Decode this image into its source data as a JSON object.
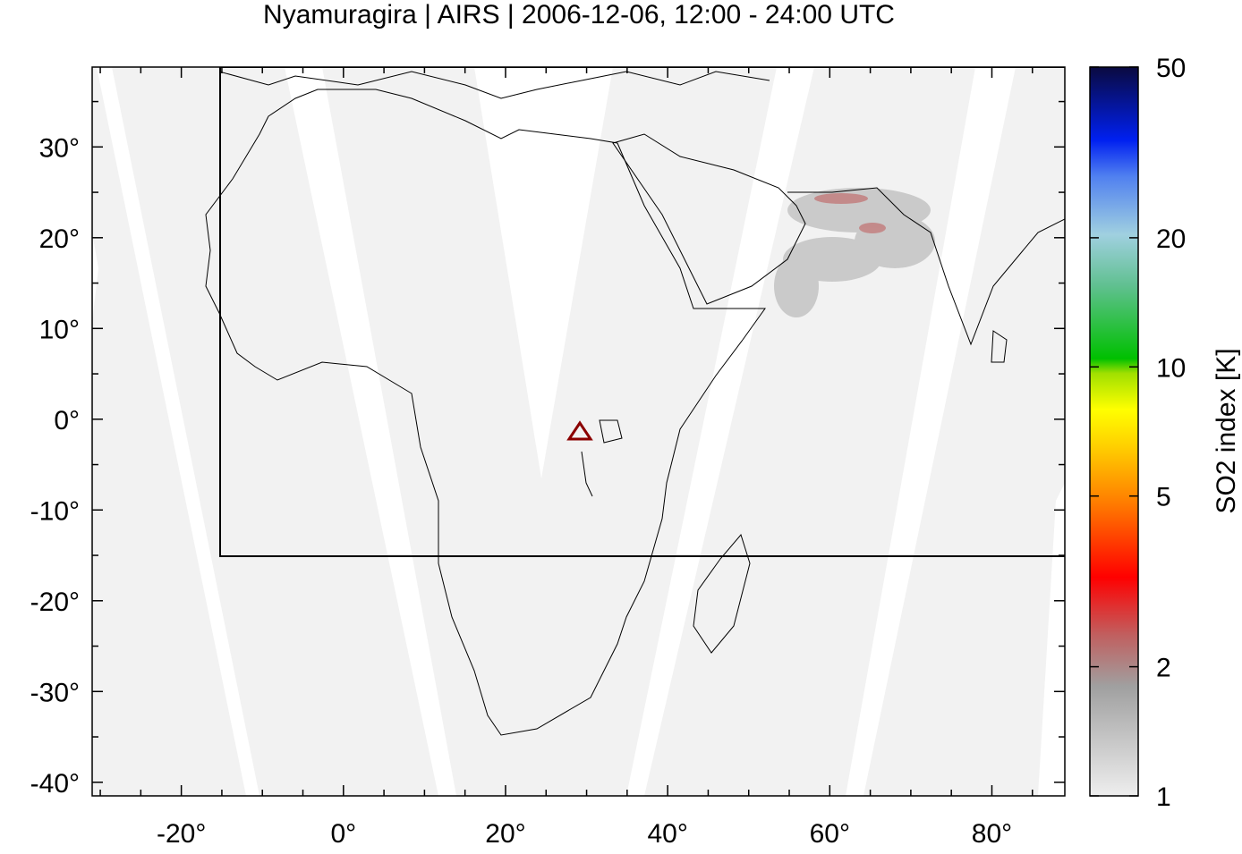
{
  "chart_data": {
    "type": "map",
    "title": "Nyamuragira | AIRS | 2006-12-06, 12:00 - 24:00 UTC",
    "xlim": [
      -31,
      89
    ],
    "ylim": [
      -41.5,
      38.8
    ],
    "xticks": [
      {
        "value": -20,
        "label": "-20°"
      },
      {
        "value": 0,
        "label": "0°"
      },
      {
        "value": 20,
        "label": "20°"
      },
      {
        "value": 40,
        "label": "40°"
      },
      {
        "value": 60,
        "label": "60°"
      },
      {
        "value": 80,
        "label": "80°"
      }
    ],
    "yticks": [
      {
        "value": -40,
        "label": "-40°"
      },
      {
        "value": -30,
        "label": "-30°"
      },
      {
        "value": -20,
        "label": "-20°"
      },
      {
        "value": -10,
        "label": "-10°"
      },
      {
        "value": 0,
        "label": "0°"
      },
      {
        "value": 10,
        "label": "10°"
      },
      {
        "value": 20,
        "label": "20°"
      },
      {
        "value": 30,
        "label": "30°"
      }
    ],
    "xminorticks": [
      -30,
      -25,
      -15,
      -10,
      -5,
      5,
      10,
      15,
      25,
      30,
      35,
      45,
      50,
      55,
      65,
      70,
      75,
      85
    ],
    "yminorticks": [
      -35,
      -25,
      -15,
      -5,
      5,
      15,
      25,
      35
    ],
    "colorbar": {
      "label": "SO2 index [K]",
      "log": true,
      "lim": [
        1,
        50
      ],
      "ticks": [
        1,
        2,
        5,
        10,
        20,
        50
      ]
    }
  }
}
